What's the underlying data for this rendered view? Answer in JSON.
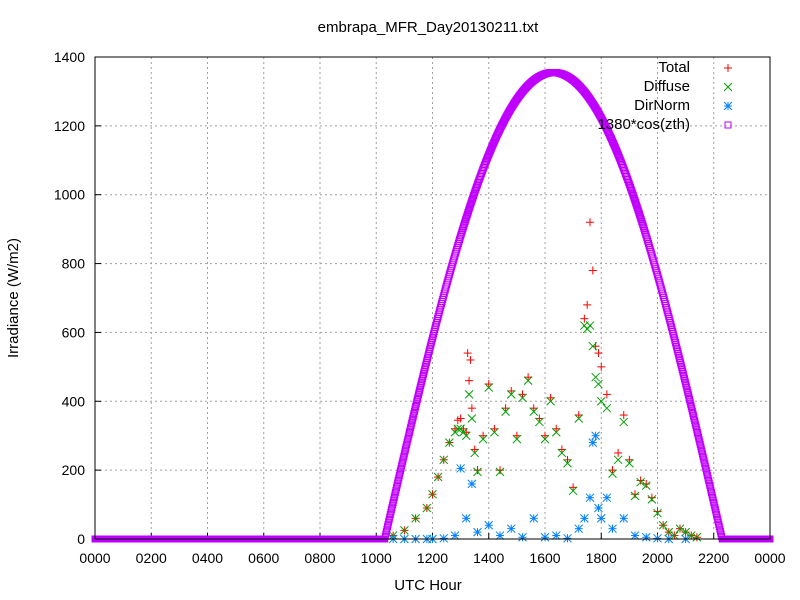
{
  "chart_data": {
    "type": "scatter",
    "title": "embrapa_MFR_Day20130211.txt",
    "xlabel": "UTC Hour",
    "ylabel": "Irradiance (W/m2)",
    "xlim": [
      0,
      24
    ],
    "ylim": [
      0,
      1400
    ],
    "x_tick_labels": [
      "0000",
      "0200",
      "0400",
      "0600",
      "0800",
      "1000",
      "1200",
      "1400",
      "1600",
      "1800",
      "2000",
      "2200",
      "0000"
    ],
    "y_tick_labels": [
      "0",
      "200",
      "400",
      "600",
      "800",
      "1000",
      "1200",
      "1400"
    ],
    "grid": true,
    "legend": {
      "placement": "top-right",
      "entries": [
        {
          "label": "Total",
          "color": "#ff0000",
          "marker": "plus"
        },
        {
          "label": "Diffuse",
          "color": "#00a000",
          "marker": "cross"
        },
        {
          "label": "DirNorm",
          "color": "#0080ff",
          "marker": "star"
        },
        {
          "label": "1380*cos(zth)",
          "color": "#c000ff",
          "marker": "square"
        }
      ]
    },
    "series": [
      {
        "name": "Total",
        "x": [
          10.6,
          11.0,
          11.4,
          11.8,
          12.0,
          12.2,
          12.4,
          12.6,
          12.8,
          12.9,
          13.0,
          13.1,
          13.2,
          13.25,
          13.3,
          13.35,
          13.4,
          13.5,
          13.6,
          13.8,
          14.0,
          14.2,
          14.4,
          14.6,
          14.8,
          15.0,
          15.2,
          15.4,
          15.6,
          15.8,
          16.0,
          16.2,
          16.4,
          16.6,
          16.8,
          17.0,
          17.2,
          17.4,
          17.5,
          17.6,
          17.7,
          17.8,
          17.9,
          18.0,
          18.2,
          18.4,
          18.6,
          18.8,
          19.0,
          19.2,
          19.4,
          19.6,
          19.8,
          20.0,
          20.2,
          20.4,
          20.6,
          20.8,
          21.0,
          21.2,
          21.4
        ],
        "y": [
          10,
          25,
          60,
          90,
          130,
          180,
          230,
          280,
          320,
          345,
          350,
          320,
          310,
          540,
          460,
          520,
          380,
          260,
          200,
          300,
          450,
          320,
          200,
          380,
          430,
          300,
          420,
          470,
          380,
          350,
          300,
          410,
          320,
          260,
          230,
          150,
          360,
          640,
          680,
          920,
          780,
          560,
          540,
          500,
          420,
          200,
          250,
          360,
          230,
          130,
          170,
          160,
          120,
          80,
          40,
          20,
          10,
          30,
          20,
          10,
          5
        ]
      },
      {
        "name": "Diffuse",
        "x": [
          10.6,
          11.0,
          11.4,
          11.8,
          12.0,
          12.2,
          12.4,
          12.6,
          12.8,
          12.9,
          13.0,
          13.1,
          13.2,
          13.3,
          13.4,
          13.5,
          13.6,
          13.8,
          14.0,
          14.2,
          14.4,
          14.6,
          14.8,
          15.0,
          15.2,
          15.4,
          15.6,
          15.8,
          16.0,
          16.2,
          16.4,
          16.6,
          16.8,
          17.0,
          17.2,
          17.4,
          17.5,
          17.6,
          17.7,
          17.8,
          17.9,
          18.0,
          18.2,
          18.4,
          18.6,
          18.8,
          19.0,
          19.2,
          19.4,
          19.6,
          19.8,
          20.0,
          20.2,
          20.4,
          20.6,
          20.8,
          21.0,
          21.2,
          21.4
        ],
        "y": [
          10,
          25,
          60,
          90,
          130,
          180,
          230,
          280,
          310,
          320,
          320,
          310,
          300,
          420,
          350,
          250,
          195,
          290,
          440,
          310,
          195,
          370,
          420,
          290,
          410,
          460,
          370,
          340,
          290,
          400,
          310,
          250,
          220,
          140,
          350,
          620,
          610,
          620,
          560,
          470,
          450,
          400,
          380,
          190,
          230,
          340,
          220,
          125,
          165,
          155,
          115,
          75,
          40,
          20,
          10,
          30,
          20,
          10,
          5
        ]
      },
      {
        "name": "DirNorm",
        "x": [
          10.6,
          11.0,
          11.4,
          11.8,
          12.0,
          12.4,
          12.8,
          13.0,
          13.2,
          13.4,
          13.6,
          14.0,
          14.4,
          14.8,
          15.2,
          15.6,
          16.0,
          16.4,
          16.8,
          17.2,
          17.4,
          17.6,
          17.7,
          17.8,
          17.9,
          18.0,
          18.2,
          18.4,
          18.8,
          19.2,
          19.6,
          20.0,
          20.4,
          21.0
        ],
        "y": [
          0,
          0,
          0,
          0,
          0,
          2,
          10,
          205,
          60,
          160,
          20,
          40,
          10,
          30,
          5,
          60,
          5,
          10,
          2,
          30,
          60,
          120,
          280,
          300,
          90,
          60,
          120,
          30,
          60,
          10,
          5,
          2,
          0,
          0
        ]
      }
    ],
    "reference_curve": {
      "name": "1380*cos(zth)",
      "amplitude": 1355,
      "sunrise": 10.3,
      "sunset": 22.3,
      "peak": 16.3
    }
  }
}
